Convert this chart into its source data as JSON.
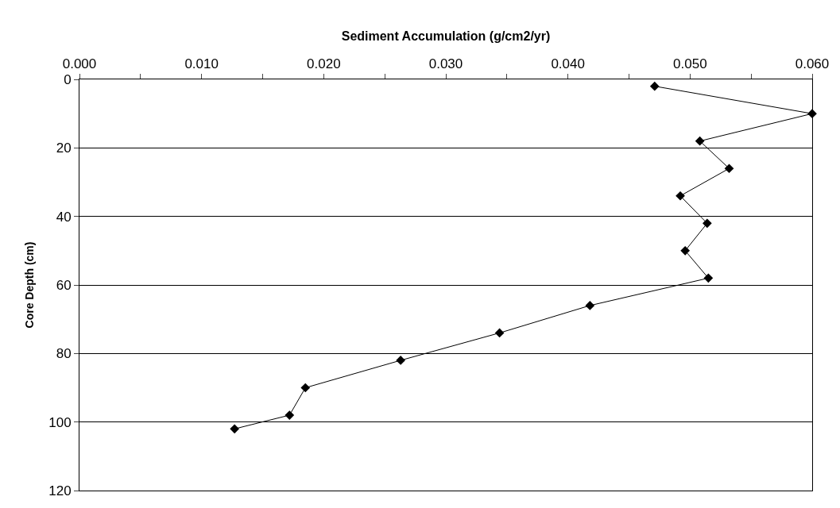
{
  "chart_data": {
    "type": "line",
    "xlabel": "Sediment Accumulation (g/cm2/yr)",
    "ylabel": "Core Depth (cm)",
    "series": [
      {
        "color": "#000000",
        "x": [
          0.0471,
          0.06,
          0.0508,
          0.0532,
          0.0492,
          0.0514,
          0.0496,
          0.0515,
          0.0418,
          0.0344,
          0.0263,
          0.0185,
          0.0172,
          0.0127
        ],
        "values": [
          2,
          10,
          18,
          26,
          34,
          42,
          50,
          58,
          66,
          74,
          82,
          90,
          98,
          102
        ]
      }
    ],
    "xlim": [
      0,
      0.06
    ],
    "xticks": [
      {
        "value": 0,
        "label": "0.000"
      },
      {
        "value": 0.005,
        "label": null
      },
      {
        "value": 0.01,
        "label": "0.010"
      },
      {
        "value": 0.015,
        "label": null
      },
      {
        "value": 0.02,
        "label": "0.020"
      },
      {
        "value": 0.025,
        "label": null
      },
      {
        "value": 0.03,
        "label": "0.030"
      },
      {
        "value": 0.035,
        "label": null
      },
      {
        "value": 0.04,
        "label": "0.040"
      },
      {
        "value": 0.045,
        "label": null
      },
      {
        "value": 0.05,
        "label": "0.050"
      },
      {
        "value": 0.055,
        "label": null
      },
      {
        "value": 0.06,
        "label": "0.060"
      }
    ],
    "ylim": [
      120,
      0
    ],
    "yticks": [
      0,
      20,
      40,
      60,
      80,
      100,
      120
    ],
    "grid": "y",
    "marker": "diamond",
    "line_style": "solid",
    "legend": false
  }
}
